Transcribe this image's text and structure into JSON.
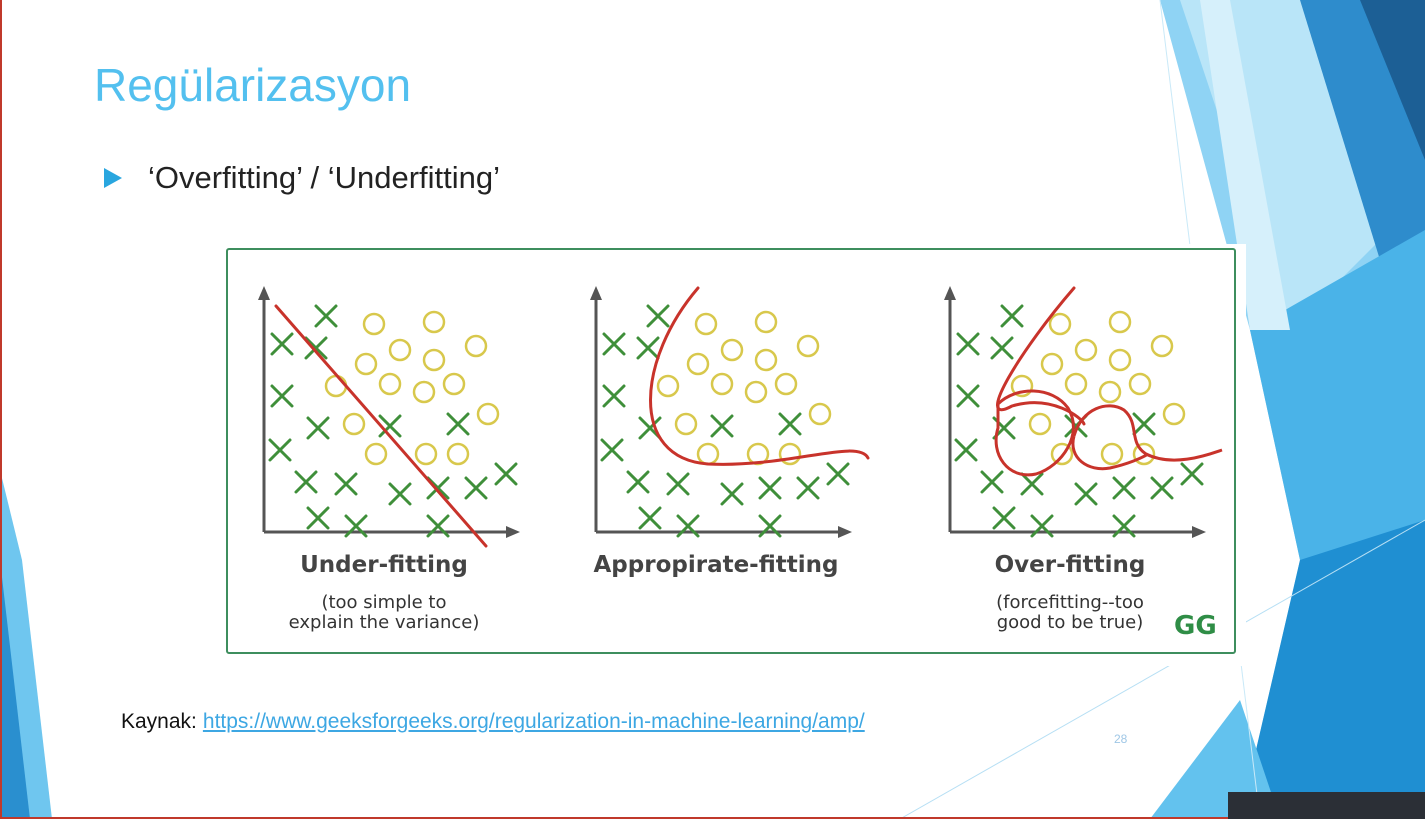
{
  "slide": {
    "title": "Regülarizasyon",
    "bullet": "‘Overfitting’ / ‘Underfitting’",
    "source_label": "Kaynak:",
    "source_link": "https://www.geeksforgeeks.org/regularization-in-machine-learning/amp/",
    "page_number": "28"
  },
  "figure": {
    "panels": [
      {
        "title": "Under-fitting",
        "subtitle_lines": [
          "(too simple to",
          "explain the variance)"
        ]
      },
      {
        "title": "Appropirate-fitting",
        "subtitle_lines": []
      },
      {
        "title": "Over-fitting",
        "subtitle_lines": [
          "(forcefitting--too",
          "good to be true)"
        ]
      }
    ],
    "logo_text": "GG",
    "colors": {
      "cross": "#3f8f3a",
      "circle": "#d8c84c",
      "boundary": "#c8332b",
      "axis": "#555555",
      "frame": "#3e8e5e"
    }
  },
  "theme": {
    "title_color": "#53c0ef",
    "accent": "#29a6df",
    "link_color": "#3da7e3"
  }
}
